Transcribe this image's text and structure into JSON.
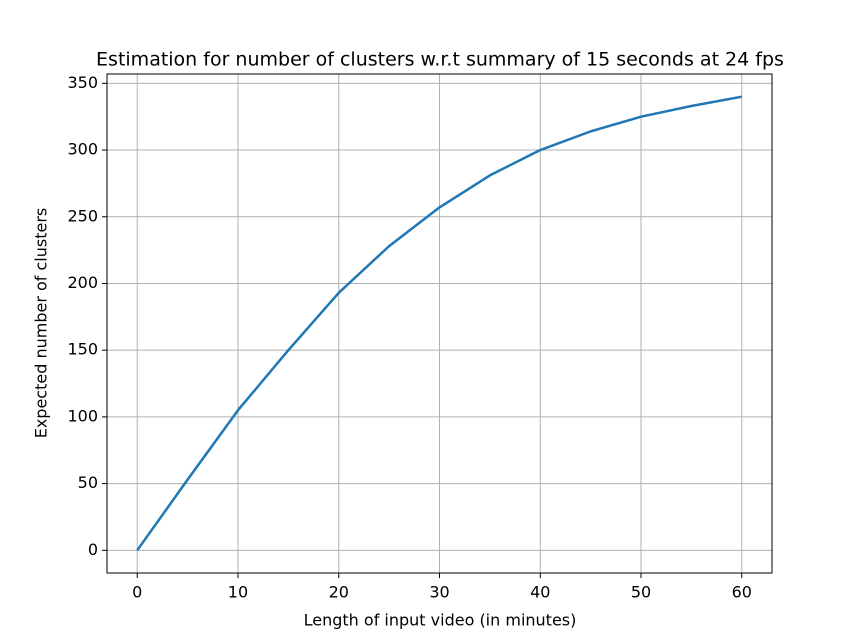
{
  "chart_data": {
    "type": "line",
    "title": "Estimation for number of clusters w.r.t summary of 15 seconds at 24 fps",
    "x_label": "Length of input video (in minutes)",
    "y_label": "Expected number of clusters",
    "x": [
      0,
      5,
      10,
      15,
      20,
      25,
      30,
      35,
      40,
      45,
      50,
      55,
      60
    ],
    "series": [
      {
        "name": "Expected number of clusters",
        "color": "#1f77b4",
        "values": [
          0,
          53,
          105,
          150,
          193,
          228,
          257,
          281,
          300,
          314,
          325,
          333,
          340
        ]
      }
    ],
    "xlim": [
      -3,
      63
    ],
    "xticks": [
      0,
      10,
      20,
      30,
      40,
      50,
      60
    ],
    "ylim": [
      -17,
      357
    ],
    "yticks": [
      0,
      50,
      100,
      150,
      200,
      250,
      300,
      350
    ],
    "grid": true
  }
}
